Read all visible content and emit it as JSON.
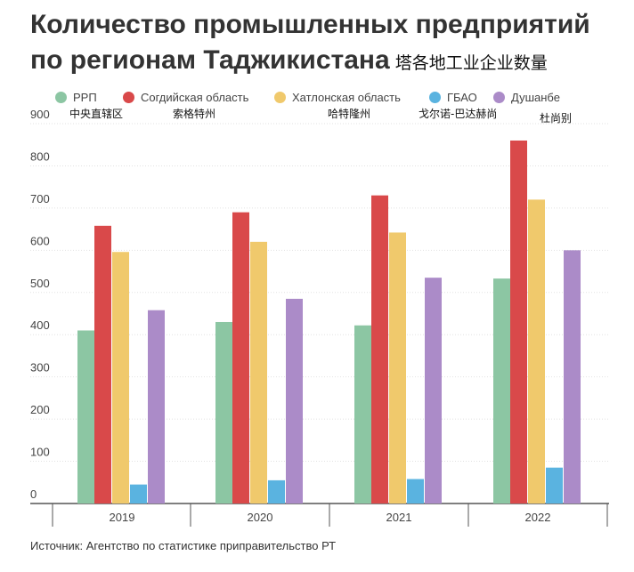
{
  "title": {
    "main": "Количество промышленных предприятий по регионам Таджикистана",
    "cn": "塔各地工业企业数量"
  },
  "legend": [
    {
      "label": "РРП",
      "cn": "中央直辖区",
      "color": "#8cc6a3"
    },
    {
      "label": "Согдийская область",
      "cn": "索格特州",
      "color": "#d9494a"
    },
    {
      "label": "Хатлонская область",
      "cn": "哈特隆州",
      "color": "#f0c96c"
    },
    {
      "label": "ГБАО",
      "cn": "戈尔诺-巴达赫尚",
      "color": "#5ab3e0"
    },
    {
      "label": "Душанбе",
      "cn": "杜尚别",
      "color": "#ab8bc8"
    }
  ],
  "source": "Источник: Агентство по статистике приправительство РТ",
  "chart_data": {
    "type": "bar",
    "categories": [
      "2019",
      "2020",
      "2021",
      "2022"
    ],
    "series": [
      {
        "name": "РРП",
        "values": [
          410,
          430,
          422,
          533
        ]
      },
      {
        "name": "Согдийская область",
        "values": [
          658,
          690,
          730,
          860
        ]
      },
      {
        "name": "Хатлонская область",
        "values": [
          596,
          620,
          642,
          720
        ]
      },
      {
        "name": "ГБАО",
        "values": [
          45,
          55,
          58,
          85
        ]
      },
      {
        "name": "Душанбе",
        "values": [
          458,
          485,
          535,
          600
        ]
      }
    ],
    "yticks": [
      0,
      100,
      200,
      300,
      400,
      500,
      600,
      700,
      800,
      900
    ],
    "ylim": [
      0,
      900
    ],
    "grid": true,
    "xlabel": "",
    "ylabel": ""
  }
}
